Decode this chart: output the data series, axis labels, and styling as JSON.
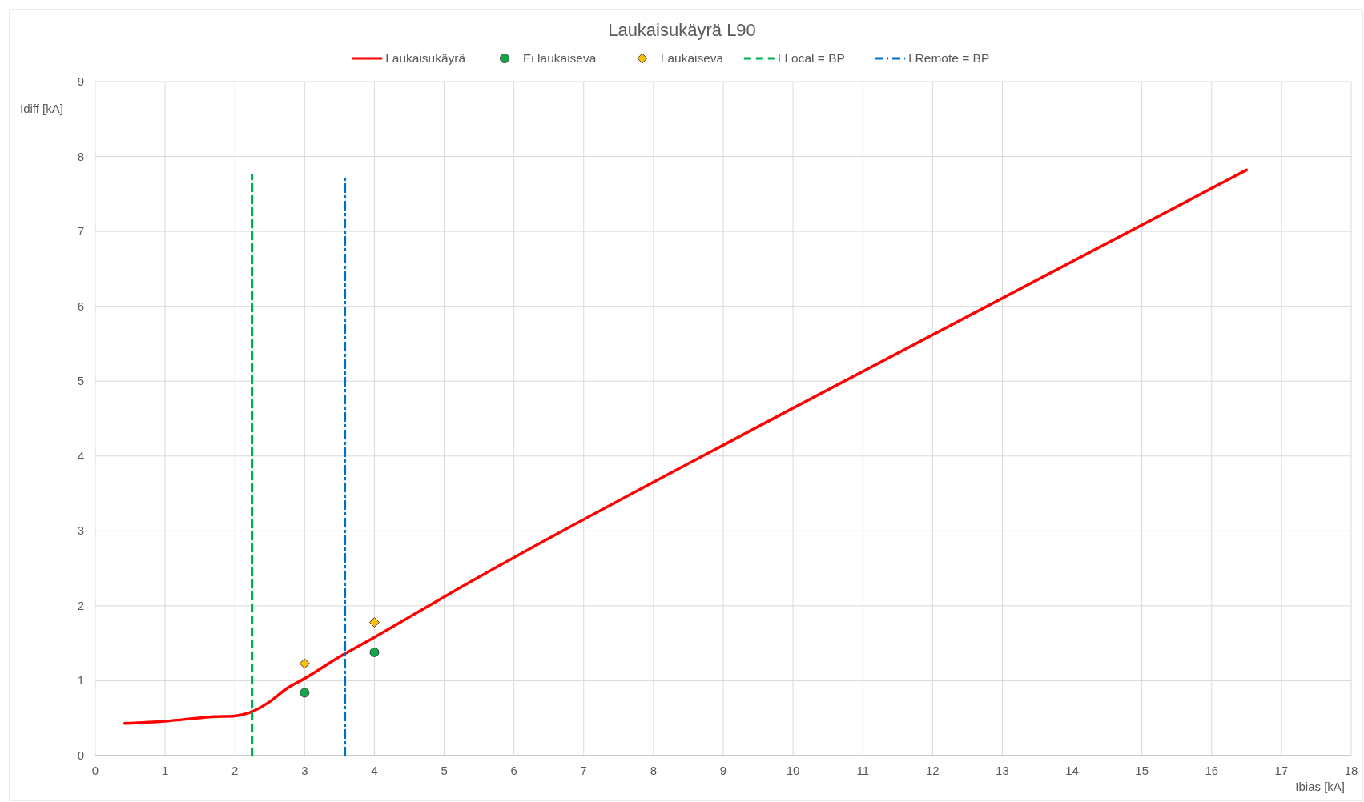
{
  "chart_data": {
    "type": "line",
    "title": "Laukaisukäyrä L90",
    "xlabel": "Ibias [kA]",
    "ylabel": "Idiff [kA]",
    "xlim": [
      0,
      18
    ],
    "xticks": [
      0,
      1,
      2,
      3,
      4,
      5,
      6,
      7,
      8,
      9,
      10,
      11,
      12,
      13,
      14,
      15,
      16,
      17,
      18
    ],
    "ylim": [
      0,
      9
    ],
    "yticks": [
      0,
      1,
      2,
      3,
      4,
      5,
      6,
      7,
      8,
      9
    ],
    "grid": true,
    "legend": "top",
    "series": [
      {
        "name": "Laukaisukäyrä",
        "color": "#ff0000",
        "line_style": "solid",
        "x": [
          0.42,
          1,
          1.7,
          2,
          2.2,
          2.5,
          2.75,
          3,
          3.5,
          4,
          5,
          10,
          16.5
        ],
        "values": [
          0.43,
          0.46,
          0.52,
          0.53,
          0.57,
          0.72,
          0.9,
          1.03,
          1.32,
          1.58,
          2.12,
          4.64,
          7.82
        ]
      },
      {
        "name": "Ei laukaiseva",
        "type": "scatter",
        "color": "#11a84c",
        "marker": "circle",
        "x": [
          3,
          4
        ],
        "values": [
          0.84,
          1.38
        ]
      },
      {
        "name": "Laukaiseva",
        "type": "scatter",
        "color": "#ffc000",
        "marker": "diamond",
        "x": [
          3,
          4
        ],
        "values": [
          1.23,
          1.78
        ]
      },
      {
        "name": "I Local = BP",
        "color": "#00b050",
        "line_style": "dashed",
        "x": [
          2.25,
          2.25
        ],
        "values": [
          0,
          7.75
        ]
      },
      {
        "name": "I Remote = BP",
        "color": "#0070c0",
        "line_style": "dashdot",
        "x": [
          3.58,
          3.58
        ],
        "values": [
          0,
          7.75
        ]
      }
    ]
  }
}
